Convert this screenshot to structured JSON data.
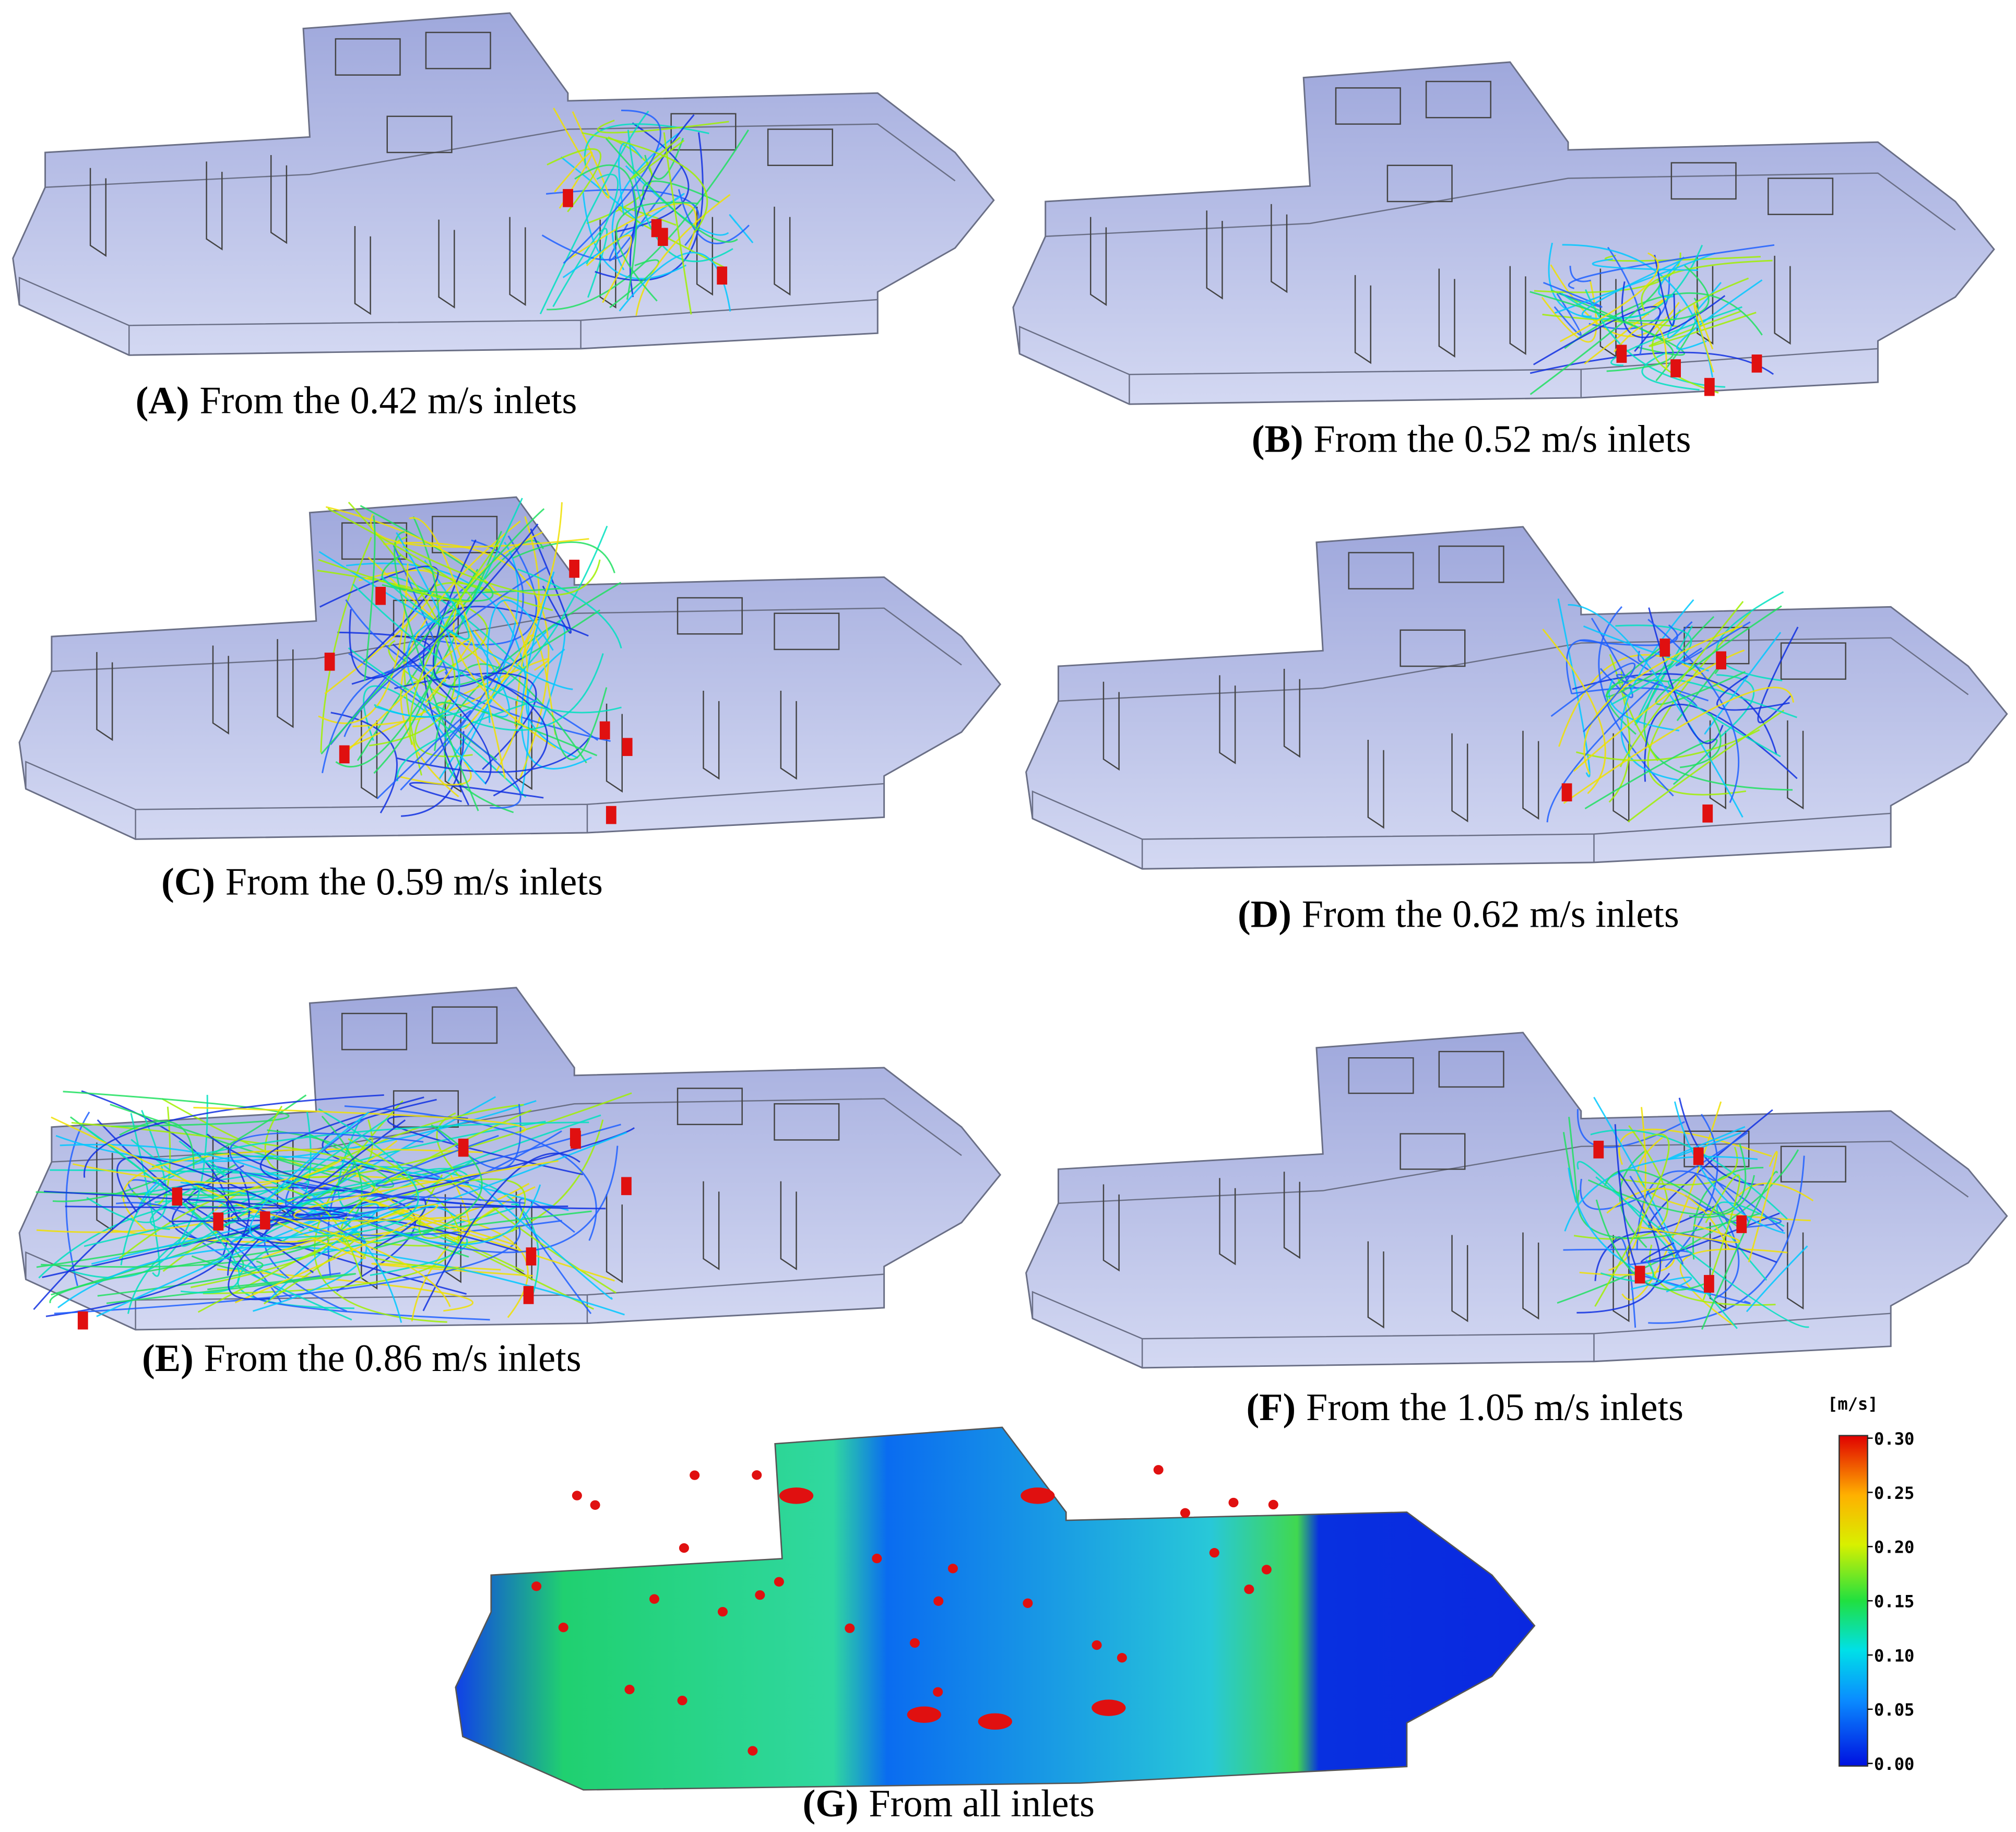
{
  "panels": [
    {
      "label": "(A)",
      "caption": "From the 0.42 m/s inlets"
    },
    {
      "label": "(B)",
      "caption": "From the 0.52 m/s inlets"
    },
    {
      "label": "(C)",
      "caption": "From the 0.59 m/s inlets"
    },
    {
      "label": "(D)",
      "caption": "From the 0.62 m/s inlets"
    },
    {
      "label": "(E)",
      "caption": "From the 0.86 m/s inlets"
    },
    {
      "label": "(F)",
      "caption": "From the 1.05 m/s inlets"
    },
    {
      "label": "(G)",
      "caption": "From all inlets"
    }
  ],
  "colorbar": {
    "unit": "[m/s]",
    "ticks": [
      {
        "value": 0,
        "label": "0.00"
      },
      {
        "value": 0.05,
        "label": "0.05"
      },
      {
        "value": 0.1,
        "label": "0.10"
      },
      {
        "value": 0.15,
        "label": "0.15"
      },
      {
        "value": 0.2,
        "label": "0.20"
      },
      {
        "value": 0.25,
        "label": "0.25"
      },
      {
        "value": 0.3,
        "label": "0.30"
      }
    ]
  }
}
